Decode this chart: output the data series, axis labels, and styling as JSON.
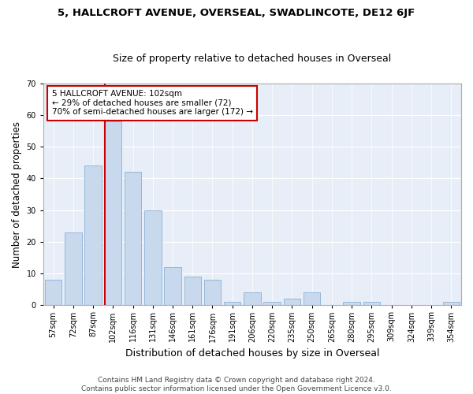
{
  "title": "5, HALLCROFT AVENUE, OVERSEAL, SWADLINCOTE, DE12 6JF",
  "subtitle": "Size of property relative to detached houses in Overseal",
  "xlabel": "Distribution of detached houses by size in Overseal",
  "ylabel": "Number of detached properties",
  "bar_color": "#c8d9ee",
  "bar_edge_color": "#8ab0d4",
  "background_color": "#e8eef8",
  "grid_color": "#ffffff",
  "categories": [
    "57sqm",
    "72sqm",
    "87sqm",
    "102sqm",
    "116sqm",
    "131sqm",
    "146sqm",
    "161sqm",
    "176sqm",
    "191sqm",
    "206sqm",
    "220sqm",
    "235sqm",
    "250sqm",
    "265sqm",
    "280sqm",
    "295sqm",
    "309sqm",
    "324sqm",
    "339sqm",
    "354sqm"
  ],
  "values": [
    8,
    23,
    44,
    58,
    42,
    30,
    12,
    9,
    8,
    1,
    4,
    1,
    2,
    4,
    0,
    1,
    1,
    0,
    0,
    0,
    1
  ],
  "property_line_color": "#cc0000",
  "annotation_line1": "5 HALLCROFT AVENUE: 102sqm",
  "annotation_line2": "← 29% of detached houses are smaller (72)",
  "annotation_line3": "70% of semi-detached houses are larger (172) →",
  "annotation_box_color": "#ffffff",
  "annotation_box_edge_color": "#cc0000",
  "ylim": [
    0,
    70
  ],
  "yticks": [
    0,
    10,
    20,
    30,
    40,
    50,
    60,
    70
  ],
  "footer_line1": "Contains HM Land Registry data © Crown copyright and database right 2024.",
  "footer_line2": "Contains public sector information licensed under the Open Government Licence v3.0.",
  "title_fontsize": 9.5,
  "subtitle_fontsize": 9,
  "xlabel_fontsize": 9,
  "ylabel_fontsize": 8.5,
  "tick_fontsize": 7,
  "annotation_fontsize": 7.5,
  "footer_fontsize": 6.5
}
